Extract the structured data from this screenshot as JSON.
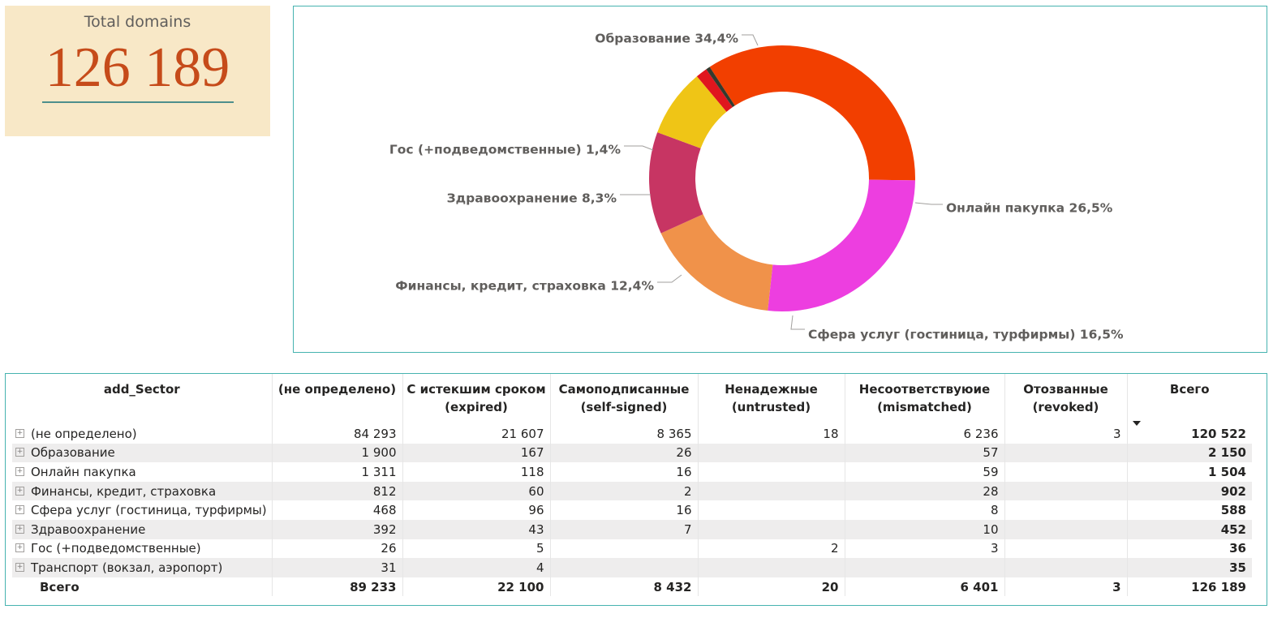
{
  "kpi": {
    "title": "Total domains",
    "value": "126 189"
  },
  "chart_data": {
    "type": "pie",
    "donut": true,
    "slices": [
      {
        "label": "Образование 34,4%",
        "name": "Образование",
        "value": 34.4,
        "color": "#f23f00"
      },
      {
        "label": "Онлайн пакупка 26,5%",
        "name": "Онлайн пакупка",
        "value": 26.5,
        "color": "#ed3ee0"
      },
      {
        "label": "Сфера услуг (гостиница, турфирмы) 16,5%",
        "name": "Сфера услуг (гостиница, турфирмы)",
        "value": 16.5,
        "color": "#f0924a"
      },
      {
        "label": "Финансы, кредит, страховка 12,4%",
        "name": "Финансы, кредит, страховка",
        "value": 12.4,
        "color": "#c73563"
      },
      {
        "label": "Здравоохранение 8,3%",
        "name": "Здравоохранение",
        "value": 8.3,
        "color": "#efc516"
      },
      {
        "label": "Гос (+подведомственные) 1,4%",
        "name": "Гос (+подведомственные)",
        "value": 1.4,
        "color": "#e0161e"
      },
      {
        "label": "",
        "name": "Транспорт (вокзал, аэропорт)",
        "value": 0.5,
        "color": "#333a2e"
      }
    ]
  },
  "table": {
    "columns": [
      "add_Sector",
      "(не определено)",
      "С истекшим сроком (expired)",
      "Самоподписанные (self-signed)",
      "Ненадежные (untrusted)",
      "Несоответствуюие (mismatched)",
      "Отозванные (revoked)",
      "Всего"
    ],
    "rows": [
      {
        "sector": "(не определено)",
        "undefined": "84 293",
        "expired": "21 607",
        "self_signed": "8 365",
        "untrusted": "18",
        "mismatched": "6 236",
        "revoked": "3",
        "total": "120 522"
      },
      {
        "sector": "Образование",
        "undefined": "1 900",
        "expired": "167",
        "self_signed": "26",
        "untrusted": "",
        "mismatched": "57",
        "revoked": "",
        "total": "2 150"
      },
      {
        "sector": "Онлайн пакупка",
        "undefined": "1 311",
        "expired": "118",
        "self_signed": "16",
        "untrusted": "",
        "mismatched": "59",
        "revoked": "",
        "total": "1 504"
      },
      {
        "sector": "Финансы, кредит, страховка",
        "undefined": "812",
        "expired": "60",
        "self_signed": "2",
        "untrusted": "",
        "mismatched": "28",
        "revoked": "",
        "total": "902"
      },
      {
        "sector": "Сфера услуг (гостиница, турфирмы)",
        "undefined": "468",
        "expired": "96",
        "self_signed": "16",
        "untrusted": "",
        "mismatched": "8",
        "revoked": "",
        "total": "588"
      },
      {
        "sector": "Здравоохранение",
        "undefined": "392",
        "expired": "43",
        "self_signed": "7",
        "untrusted": "",
        "mismatched": "10",
        "revoked": "",
        "total": "452"
      },
      {
        "sector": "Гос (+подведомственные)",
        "undefined": "26",
        "expired": "5",
        "self_signed": "",
        "untrusted": "2",
        "mismatched": "3",
        "revoked": "",
        "total": "36"
      },
      {
        "sector": "Транспорт (вокзал, аэропорт)",
        "undefined": "31",
        "expired": "4",
        "self_signed": "",
        "untrusted": "",
        "mismatched": "",
        "revoked": "",
        "total": "35"
      }
    ],
    "totals": {
      "label": "Всего",
      "undefined": "89 233",
      "expired": "22 100",
      "self_signed": "8 432",
      "untrusted": "20",
      "mismatched": "6 401",
      "revoked": "3",
      "total": "126 189"
    },
    "expand_icon": "plus-square-icon",
    "sort_icon": "sort-descending-icon"
  }
}
